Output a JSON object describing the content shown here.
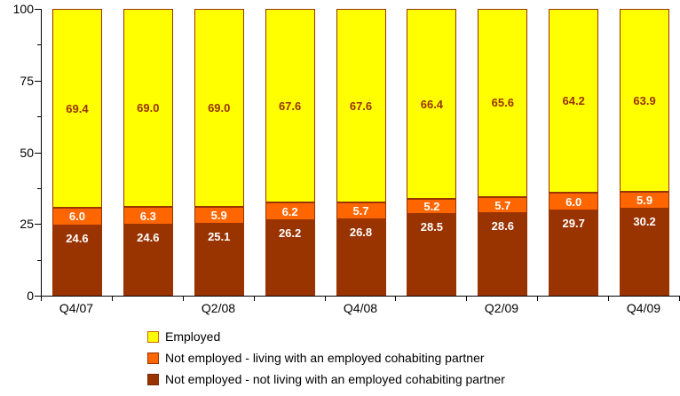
{
  "chart_data": {
    "type": "bar",
    "stacked": true,
    "title": "",
    "grid": false,
    "ylim": [
      0,
      100
    ],
    "y_major_ticks": [
      0,
      25,
      50,
      75,
      100
    ],
    "y_tick_labels": [
      "0",
      "25",
      "50",
      "75",
      "100"
    ],
    "y_minor_ticks": [
      12.5,
      37.5,
      62.5,
      87.5
    ],
    "categories": [
      "Q4/07",
      "",
      "Q2/08",
      "",
      "Q4/08",
      "",
      "Q2/09",
      "",
      "Q4/09"
    ],
    "series": [
      {
        "name": "Employed",
        "color": "#FFFF00",
        "border_color": "#993300",
        "label_color": "#993300",
        "label_style": "center",
        "values": [
          69.4,
          69.0,
          69.0,
          67.6,
          67.6,
          66.4,
          65.6,
          64.2,
          63.9
        ],
        "labels": [
          "69.4",
          "69.0",
          "69.0",
          "67.6",
          "67.6",
          "66.4",
          "65.6",
          "64.2",
          "63.9"
        ]
      },
      {
        "name": "Not employed - living with an employed cohabiting partner",
        "color": "#FF6600",
        "border_color": "#993300",
        "label_color": "#FFFFFF",
        "label_style": "center",
        "values": [
          6.0,
          6.3,
          5.9,
          6.2,
          5.7,
          5.2,
          5.7,
          6.0,
          5.9
        ],
        "labels": [
          "6.0",
          "6.3",
          "5.9",
          "6.2",
          "5.7",
          "5.2",
          "5.7",
          "6.0",
          "5.9"
        ]
      },
      {
        "name": "Not employed - not living with an employed cohabiting partner",
        "color": "#993300",
        "border_color": "#993300",
        "label_color": "#FFFFFF",
        "label_style": "top",
        "values": [
          24.6,
          24.6,
          25.1,
          26.2,
          26.8,
          28.5,
          28.6,
          29.7,
          30.2
        ],
        "labels": [
          "24.6",
          "24.6",
          "25.1",
          "26.2",
          "26.8",
          "28.5",
          "28.6",
          "29.7",
          "30.2"
        ]
      }
    ],
    "legend_position": "bottom-left",
    "legend": [
      {
        "label": "Employed",
        "swatch_color": "#FFFF00",
        "swatch_border": "#CC6600"
      },
      {
        "label": "Not employed - living with an employed cohabiting partner",
        "swatch_color": "#FF6600",
        "swatch_border": "#993300"
      },
      {
        "label": "Not employed - not living with an employed cohabiting partner",
        "swatch_color": "#993300",
        "swatch_border": "#7A2900"
      }
    ],
    "axis_color": "#000000"
  }
}
